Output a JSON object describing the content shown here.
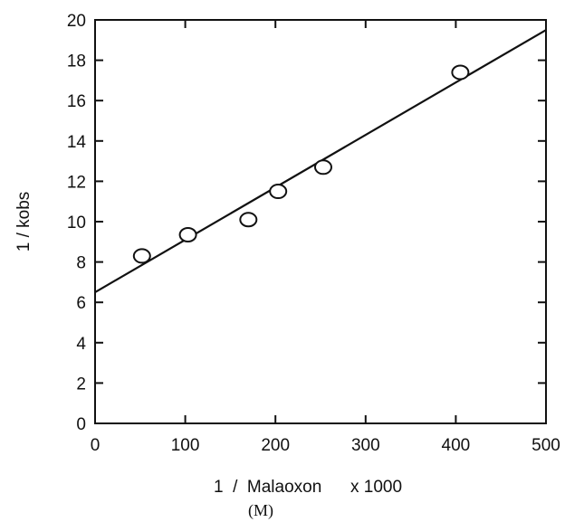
{
  "chart_data": {
    "type": "scatter",
    "title": "",
    "xlabel": "1  /  Malaoxon      x 1000",
    "xlabel_unit": "(M)",
    "ylabel": "1  /  kobs",
    "xlim": [
      0,
      500
    ],
    "ylim": [
      0,
      20
    ],
    "xticks": [
      0,
      100,
      200,
      300,
      400,
      500
    ],
    "yticks": [
      0,
      2,
      4,
      6,
      8,
      10,
      12,
      14,
      16,
      18,
      20
    ],
    "grid": false,
    "series": [
      {
        "kind": "points",
        "marker": "open-circle",
        "x": [
          52,
          103,
          170,
          203,
          253,
          405
        ],
        "y": [
          8.3,
          9.35,
          10.1,
          11.5,
          12.7,
          17.4
        ]
      },
      {
        "kind": "fit-line",
        "x": [
          0,
          500
        ],
        "y": [
          6.5,
          19.5
        ]
      }
    ],
    "colors": {
      "ink": "#111111",
      "background": "#ffffff"
    }
  }
}
